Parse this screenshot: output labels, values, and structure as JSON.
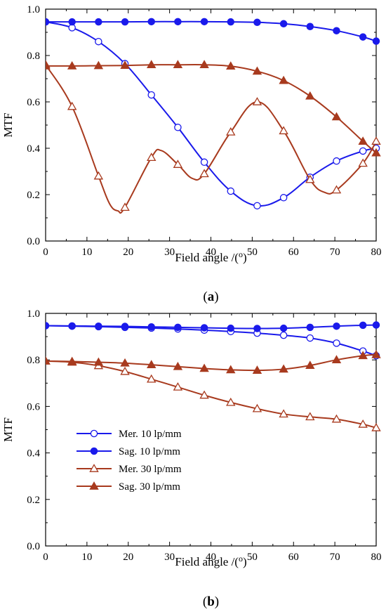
{
  "chart_data": [
    {
      "type": "line",
      "panel_label": "a",
      "xlabel": "Field angle /(o)",
      "ylabel": "MTF",
      "xlim": [
        0,
        80
      ],
      "ylim": [
        0,
        1.0
      ],
      "x_ticks": [
        "0",
        "10",
        "20",
        "30",
        "40",
        "50",
        "60",
        "70",
        "80"
      ],
      "y_ticks": [
        "0.0",
        "0.2",
        "0.4",
        "0.6",
        "0.8",
        "1.0"
      ],
      "series": [
        {
          "key": "mer10",
          "color": "#1a1aeb",
          "marker": "circle-open",
          "x": [
            0,
            6.4,
            12.8,
            19.2,
            25.6,
            32,
            38.4,
            44.8,
            51.2,
            57.6,
            64,
            70.4,
            76.8,
            80
          ],
          "y": [
            0.945,
            0.92,
            0.86,
            0.765,
            0.63,
            0.49,
            0.34,
            0.215,
            0.152,
            0.187,
            0.275,
            0.345,
            0.388,
            0.4
          ]
        },
        {
          "key": "sag10",
          "color": "#1a1aeb",
          "marker": "circle-filled",
          "x": [
            0,
            6.4,
            12.8,
            19.2,
            25.6,
            32,
            38.4,
            44.8,
            51.2,
            57.6,
            64,
            70.4,
            76.8,
            80
          ],
          "y": [
            0.945,
            0.945,
            0.945,
            0.945,
            0.946,
            0.946,
            0.946,
            0.945,
            0.943,
            0.937,
            0.925,
            0.907,
            0.88,
            0.862
          ]
        },
        {
          "key": "mer30",
          "color": "#a83a1e",
          "marker": "triangle-open",
          "x": [
            0,
            6.4,
            12.8,
            15.5,
            17.5,
            19.2,
            25.6,
            28,
            32,
            35.5,
            38.4,
            44.8,
            51.2,
            57.6,
            64,
            67.5,
            70.4,
            76.8,
            80
          ],
          "y": [
            0.76,
            0.58,
            0.28,
            0.16,
            0.13,
            0.145,
            0.36,
            0.39,
            0.33,
            0.27,
            0.29,
            0.47,
            0.6,
            0.475,
            0.265,
            0.21,
            0.22,
            0.335,
            0.43
          ]
        },
        {
          "key": "sag30",
          "color": "#a83a1e",
          "marker": "triangle-filled",
          "x": [
            0,
            6.4,
            12.8,
            19.2,
            25.6,
            32,
            38.4,
            44.8,
            51.2,
            57.6,
            64,
            70.4,
            76.8,
            80
          ],
          "y": [
            0.755,
            0.755,
            0.756,
            0.757,
            0.76,
            0.76,
            0.76,
            0.754,
            0.732,
            0.692,
            0.625,
            0.535,
            0.43,
            0.38
          ]
        }
      ]
    },
    {
      "type": "line",
      "panel_label": "b",
      "xlabel": "Field angle /(o)",
      "ylabel": "MTF",
      "xlim": [
        0,
        80
      ],
      "ylim": [
        0,
        1.0
      ],
      "x_ticks": [
        "0",
        "10",
        "20",
        "30",
        "40",
        "50",
        "60",
        "70",
        "80"
      ],
      "y_ticks": [
        "0.0",
        "0.2",
        "0.4",
        "0.6",
        "0.8",
        "1.0"
      ],
      "legend": {
        "placement": "lower-left",
        "entries": [
          {
            "key": "mer10",
            "label": "Mer. 10 lp/mm"
          },
          {
            "key": "sag10",
            "label": "Sag. 10 lp/mm"
          },
          {
            "key": "mer30",
            "label": "Mer. 30 lp/mm"
          },
          {
            "key": "sag30",
            "label": "Sag. 30 lp/mm"
          }
        ]
      },
      "series": [
        {
          "key": "mer10",
          "color": "#1a1aeb",
          "marker": "circle-open",
          "x": [
            0,
            6.4,
            12.8,
            19.2,
            25.6,
            32,
            38.4,
            44.8,
            51.2,
            57.6,
            64,
            70.4,
            76.8,
            80
          ],
          "y": [
            0.947,
            0.945,
            0.943,
            0.94,
            0.937,
            0.933,
            0.928,
            0.922,
            0.915,
            0.906,
            0.894,
            0.872,
            0.838,
            0.818
          ]
        },
        {
          "key": "sag10",
          "color": "#1a1aeb",
          "marker": "circle-filled",
          "x": [
            0,
            6.4,
            12.8,
            19.2,
            25.6,
            32,
            38.4,
            44.8,
            51.2,
            57.6,
            64,
            70.4,
            76.8,
            80
          ],
          "y": [
            0.947,
            0.946,
            0.945,
            0.944,
            0.942,
            0.94,
            0.938,
            0.936,
            0.935,
            0.936,
            0.94,
            0.945,
            0.949,
            0.95
          ]
        },
        {
          "key": "mer30",
          "color": "#a83a1e",
          "marker": "triangle-open",
          "x": [
            0,
            6.4,
            12.8,
            19.2,
            25.6,
            32,
            38.4,
            44.8,
            51.2,
            57.6,
            64,
            70.4,
            76.8,
            80
          ],
          "y": [
            0.795,
            0.79,
            0.775,
            0.75,
            0.717,
            0.683,
            0.648,
            0.617,
            0.59,
            0.567,
            0.555,
            0.545,
            0.523,
            0.508
          ]
        },
        {
          "key": "sag30",
          "color": "#a83a1e",
          "marker": "triangle-filled",
          "x": [
            0,
            6.4,
            12.8,
            19.2,
            25.6,
            32,
            38.4,
            44.8,
            51.2,
            57.6,
            64,
            70.4,
            76.8,
            80
          ],
          "y": [
            0.795,
            0.793,
            0.79,
            0.786,
            0.779,
            0.771,
            0.763,
            0.757,
            0.755,
            0.76,
            0.776,
            0.8,
            0.818,
            0.822
          ]
        }
      ]
    }
  ]
}
